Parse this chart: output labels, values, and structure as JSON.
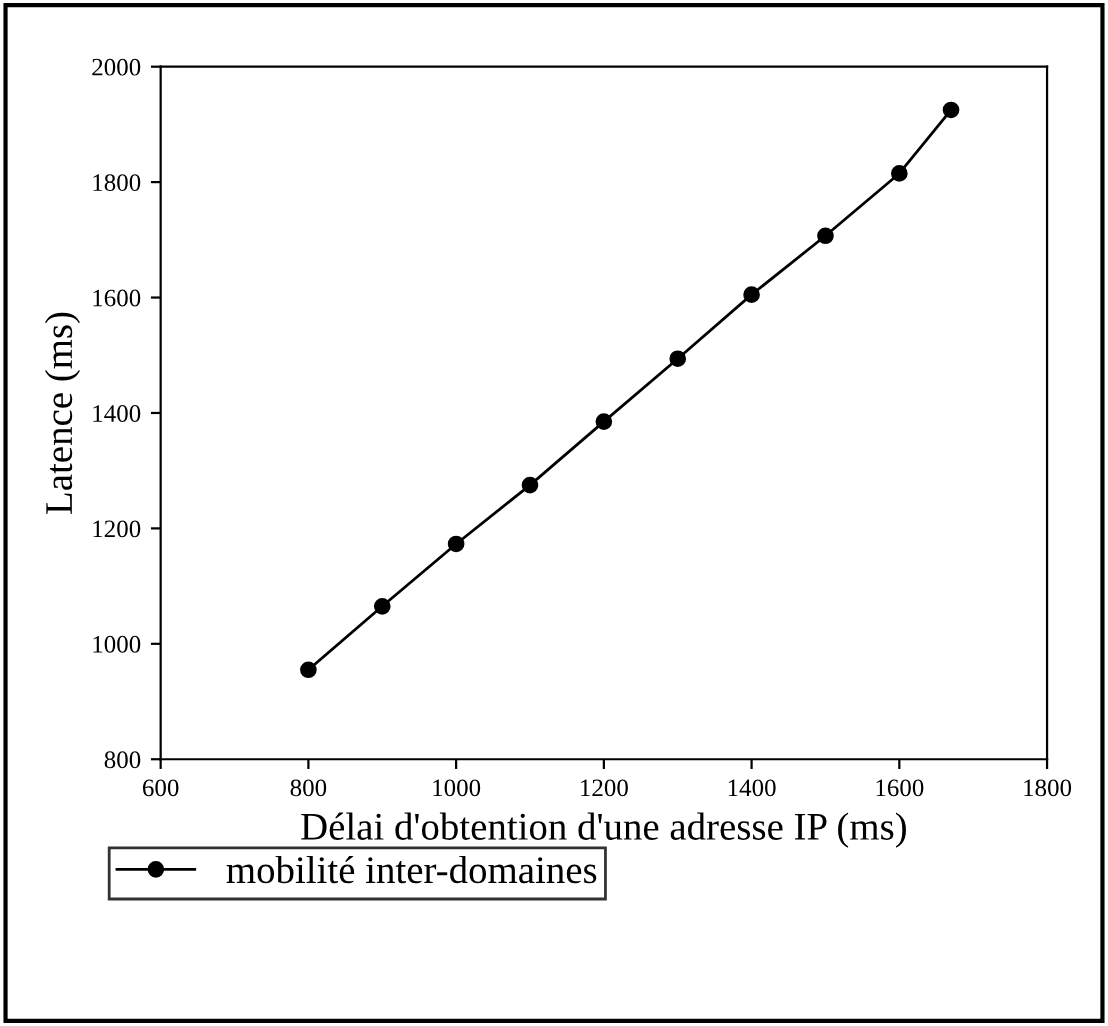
{
  "chart_data": {
    "type": "line",
    "xlabel": "Délai d'obtention d'une adresse IP (ms)",
    "ylabel": "Latence (ms)",
    "x": [
      800,
      900,
      1000,
      1100,
      1200,
      1300,
      1400,
      1500,
      1600,
      1670
    ],
    "series": [
      {
        "name": "mobilité inter-domaines",
        "color": "#000000",
        "values": [
          955,
          1065,
          1173,
          1275,
          1385,
          1494,
          1605,
          1707,
          1815,
          1925
        ]
      }
    ],
    "xlim": [
      600,
      1800
    ],
    "xticks": [
      600,
      800,
      1000,
      1200,
      1400,
      1600,
      1800
    ],
    "ylim": [
      800,
      2000
    ],
    "yticks": [
      800,
      1000,
      1200,
      1400,
      1600,
      1800,
      2000
    ],
    "grid": false,
    "legend": "bottom left",
    "marker": "circle",
    "line_style": "solid"
  }
}
